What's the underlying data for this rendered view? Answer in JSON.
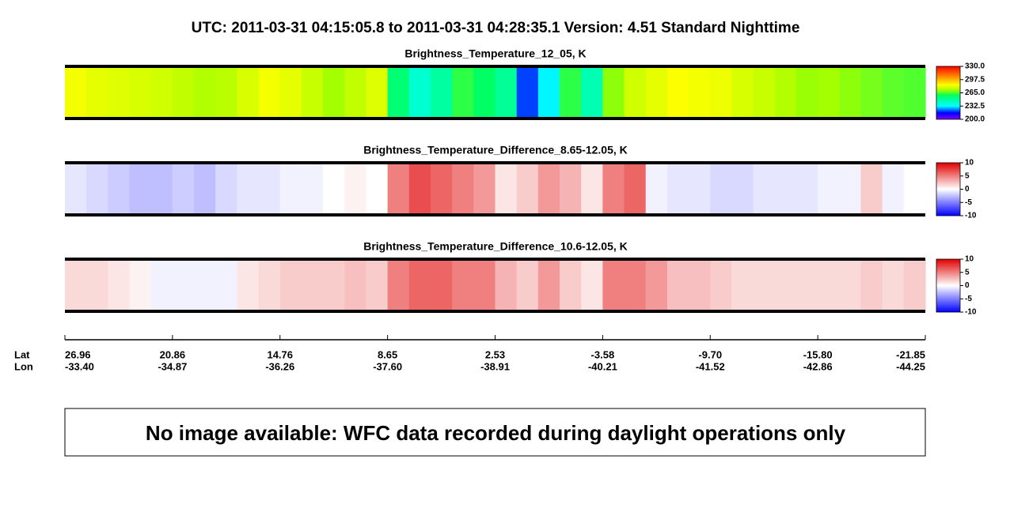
{
  "title": "UTC:  2011-03-31   04:15:05.8  to  2011-03-31   04:28:35.1    Version: 4.51  Standard Nighttime",
  "chart_data": [
    {
      "type": "heatmap",
      "title": "Brightness_Temperature_12_05, K",
      "colormap": "rainbow",
      "clim": [
        200,
        330
      ],
      "colorbar_ticks": [
        {
          "value": 330,
          "label": "330.0"
        },
        297.5,
        {
          "value": 265,
          "label": "265.0"
        },
        232.5,
        {
          "value": 200,
          "label": "200.0"
        }
      ],
      "values": [
        283,
        281,
        280,
        279,
        278,
        276,
        274,
        275,
        279,
        283,
        281,
        277,
        272,
        276,
        280,
        255,
        240,
        248,
        262,
        258,
        250,
        220,
        232,
        262,
        245,
        270,
        278,
        281,
        284,
        283,
        282,
        279,
        277,
        274,
        271,
        272,
        270,
        268,
        266,
        265
      ]
    },
    {
      "type": "heatmap",
      "title": "Brightness_Temperature_Difference_8.65-12.05, K",
      "colormap": "diverging",
      "clim": [
        -10,
        10
      ],
      "colorbar_ticks": [
        10,
        5,
        0,
        -5,
        -10
      ],
      "values": [
        -1,
        -1.5,
        -2,
        -2.5,
        -2.5,
        -2,
        -2.5,
        -1.5,
        -1,
        -1,
        -0.5,
        -0.5,
        0,
        0.5,
        0,
        5,
        7,
        6,
        5,
        4,
        1,
        2,
        4,
        3,
        1,
        5,
        6,
        -0.5,
        -1,
        -1,
        -1.5,
        -1.5,
        -1,
        -1,
        -1,
        -0.5,
        -0.5,
        2,
        -0.5,
        0
      ]
    },
    {
      "type": "heatmap",
      "title": "Brightness_Temperature_Difference_10.6-12.05, K",
      "colormap": "diverging",
      "clim": [
        -10,
        10
      ],
      "colorbar_ticks": [
        10,
        5,
        0,
        -5,
        -10
      ],
      "values": [
        1.5,
        1.5,
        1,
        0.5,
        -0.5,
        -0.5,
        -0.5,
        -0.5,
        1,
        1.5,
        2,
        2,
        2,
        2.5,
        2,
        5,
        6,
        6,
        5,
        5,
        3,
        2,
        4,
        2,
        1,
        5,
        5,
        4,
        2.5,
        2.5,
        2,
        1.5,
        1.5,
        1.5,
        1.5,
        1.5,
        1.5,
        2,
        1.5,
        2
      ]
    }
  ],
  "x_axis": {
    "lat_label": "Lat",
    "lon_label": "Lon",
    "lat": [
      "26.96",
      "20.86",
      "14.76",
      "8.65",
      "2.53",
      "-3.58",
      "-9.70",
      "-15.80",
      "-21.85"
    ],
    "lon": [
      "-33.40",
      "-34.87",
      "-36.26",
      "-37.60",
      "-38.91",
      "-40.21",
      "-41.52",
      "-42.86",
      "-44.25"
    ]
  },
  "notice": "No image available: WFC data recorded during daylight operations only"
}
